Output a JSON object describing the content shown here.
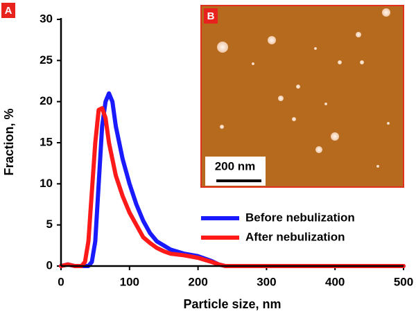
{
  "chart_data": {
    "type": "line",
    "panel_label": "A",
    "inset_label": "B",
    "inset_scale_bar": "200 nm",
    "x_label": "Particle size, nm",
    "y_label": "Fraction, %",
    "x": [
      0,
      10,
      20,
      30,
      35,
      40,
      45,
      50,
      55,
      60,
      65,
      70,
      75,
      80,
      90,
      100,
      110,
      120,
      130,
      140,
      150,
      160,
      180,
      200,
      220,
      230,
      240,
      250,
      300,
      400,
      500
    ],
    "series": [
      {
        "name": "Before nebulization",
        "color": "#1a1aff",
        "values": [
          0,
          0.2,
          0,
          0,
          0,
          0,
          0.5,
          3,
          10,
          17,
          20,
          21,
          20,
          17,
          13,
          10,
          7.5,
          5.5,
          4,
          3,
          2.5,
          2,
          1.5,
          1.2,
          0.6,
          0.2,
          0,
          0,
          0,
          0,
          0
        ]
      },
      {
        "name": "After nebulization",
        "color": "#ff1a1a",
        "values": [
          0,
          0.2,
          0,
          0,
          0.5,
          3,
          9,
          15,
          19,
          19.2,
          18,
          15,
          13,
          11,
          8.5,
          6.5,
          5,
          3.5,
          2.8,
          2.2,
          1.8,
          1.5,
          1.3,
          1,
          0.5,
          0.2,
          0,
          0,
          0,
          0,
          0
        ]
      }
    ],
    "xlim": [
      0,
      500
    ],
    "xticks": [
      0,
      100,
      200,
      300,
      400,
      500
    ],
    "ylim": [
      0,
      30
    ],
    "yticks": [
      0,
      5,
      10,
      15,
      20,
      25,
      30
    ],
    "legend": "lower-right"
  }
}
